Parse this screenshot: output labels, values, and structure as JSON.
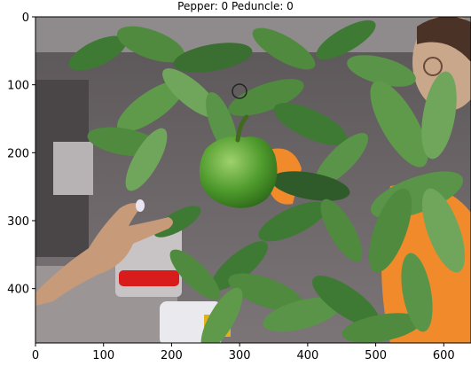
{
  "figure": {
    "title": "Pepper: 0 Peduncle: 0"
  },
  "image_content": {
    "description_icons": [
      "green-bell-pepper",
      "plant-leaves",
      "hand",
      "person-with-glasses",
      "office-background"
    ]
  },
  "chart_data": {
    "type": "image",
    "title": "Pepper: 0 Peduncle: 0",
    "xlim": [
      0,
      640
    ],
    "ylim": [
      480,
      0
    ],
    "x_ticks": [
      0,
      100,
      200,
      300,
      400,
      500,
      600
    ],
    "y_ticks": [
      0,
      100,
      200,
      300,
      400
    ],
    "grid": false
  },
  "colors": {
    "leaf_dark": "#2f5a2a",
    "leaf_mid": "#3f7a35",
    "leaf_light": "#6fa65b",
    "pepper": "#4e9a2c",
    "orange": "#f08a2a",
    "wall": "#6a6467",
    "floor": "#9b9596"
  }
}
